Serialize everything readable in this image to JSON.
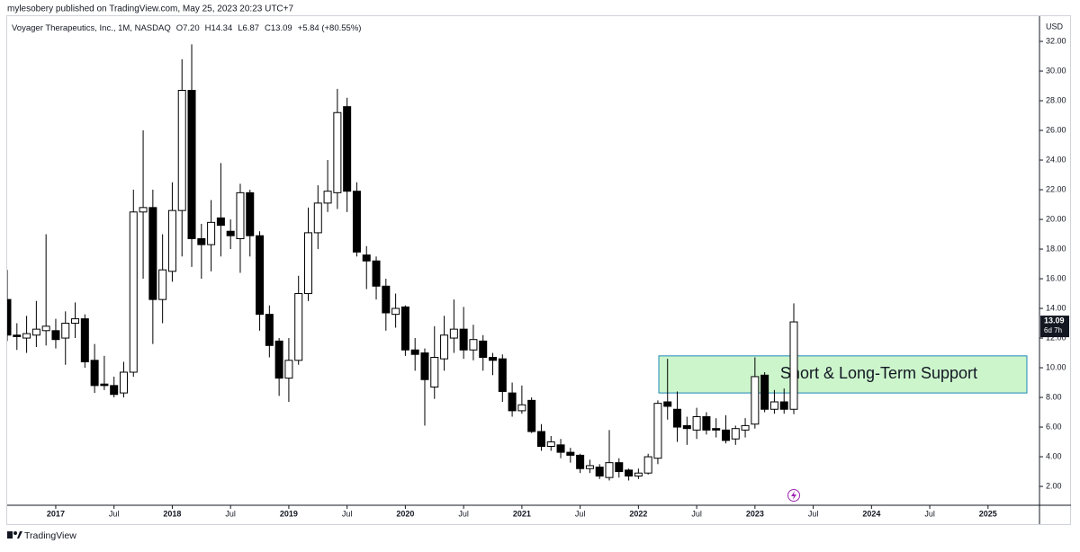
{
  "header": "mylesobery published on TradingView.com, May 25, 2023 20:23 UTC+7",
  "footer": "TradingView",
  "chart_data": {
    "type": "candlestick",
    "legend": {
      "symbol": "Voyager Therapeutics, Inc., 1M, NASDAQ",
      "open": "O7.20",
      "high": "H14.34",
      "low": "L6.87",
      "close": "C13.09",
      "change": "+5.84 (+80.55%)"
    },
    "currency": "USD",
    "up_color": "#ffffff",
    "down_color": "#000000",
    "wick_color": "#000000",
    "x": [
      -5,
      -4,
      -3,
      -2,
      -1,
      0,
      1,
      2,
      3,
      4,
      5,
      6,
      7,
      8,
      9,
      10,
      11,
      12,
      13,
      14,
      15,
      16,
      17,
      18,
      19,
      20,
      21,
      22,
      23,
      24,
      25,
      26,
      27,
      28,
      29,
      30,
      31,
      32,
      33,
      34,
      35,
      36,
      37,
      38,
      39,
      40,
      41,
      42,
      43,
      44,
      45,
      46,
      47,
      48,
      49,
      50,
      51,
      52,
      53,
      54,
      55,
      56,
      57,
      58,
      59,
      60,
      61,
      62,
      63,
      64,
      65,
      66,
      67,
      68,
      69,
      70,
      71,
      72,
      73,
      74,
      75,
      76
    ],
    "open": [
      14.6,
      12.2,
      12.0,
      12.2,
      12.5,
      12.5,
      12.0,
      13.0,
      13.3,
      10.5,
      8.9,
      8.8,
      8.3,
      9.7,
      20.5,
      20.8,
      14.6,
      16.5,
      20.6,
      28.7,
      18.7,
      18.3,
      20.1,
      19.2,
      18.7,
      21.8,
      18.9,
      13.6,
      11.8,
      9.3,
      10.5,
      15.0,
      19.1,
      21.1,
      21.8,
      27.6,
      21.9,
      17.6,
      17.2,
      15.5,
      13.6,
      14.1,
      11.2,
      11.0,
      8.7,
      10.6,
      12.0,
      12.6,
      11.2,
      11.8,
      10.7,
      10.6,
      8.3,
      7.1,
      7.8,
      5.7,
      4.7,
      4.8,
      4.3,
      4.1,
      3.2,
      3.3,
      2.6,
      3.6,
      3.1,
      2.7,
      2.9,
      3.9,
      7.7,
      7.2,
      6.1,
      5.8,
      6.7,
      5.9,
      5.8,
      5.2,
      5.8,
      6.2,
      9.5,
      7.2,
      7.7,
      7.2
    ],
    "high": [
      16.6,
      13.0,
      13.5,
      14.5,
      19.0,
      13.3,
      13.8,
      14.4,
      13.6,
      11.6,
      10.8,
      9.4,
      10.4,
      22.0,
      26.0,
      22.0,
      19.0,
      22.5,
      30.8,
      31.8,
      19.7,
      21.3,
      23.8,
      20.0,
      22.4,
      22.0,
      19.2,
      14.2,
      12.0,
      12.0,
      16.2,
      20.8,
      22.3,
      24.0,
      28.8,
      28.2,
      22.5,
      18.2,
      17.5,
      16.0,
      15.0,
      14.2,
      12.0,
      11.3,
      12.8,
      13.5,
      14.6,
      14.1,
      12.9,
      12.2,
      11.0,
      10.9,
      9.0,
      8.8,
      8.0,
      6.2,
      5.4,
      5.2,
      4.6,
      4.2,
      3.8,
      3.5,
      5.8,
      3.9,
      3.2,
      3.2,
      4.2,
      7.8,
      10.6,
      8.4,
      6.7,
      7.3,
      7.0,
      6.6,
      6.8,
      6.1,
      6.6,
      10.7,
      9.7,
      8.5,
      8.6,
      14.34
    ],
    "low": [
      11.8,
      11.2,
      11.0,
      11.4,
      11.5,
      11.3,
      10.2,
      12.0,
      10.0,
      8.3,
      8.5,
      8.0,
      8.0,
      9.4,
      16.0,
      11.6,
      13.0,
      15.8,
      17.5,
      16.8,
      16.0,
      16.5,
      17.5,
      18.0,
      16.4,
      17.5,
      12.5,
      10.7,
      8.1,
      7.7,
      10.2,
      14.5,
      18.0,
      20.5,
      20.7,
      20.5,
      17.5,
      15.3,
      14.6,
      12.5,
      12.7,
      10.8,
      9.8,
      6.1,
      7.9,
      9.8,
      11.0,
      10.6,
      10.5,
      9.8,
      9.5,
      7.7,
      6.7,
      6.9,
      5.6,
      4.4,
      4.4,
      3.9,
      3.6,
      2.9,
      2.9,
      2.5,
      2.4,
      2.6,
      2.4,
      2.5,
      2.8,
      3.5,
      6.5,
      5.0,
      4.8,
      5.2,
      5.5,
      5.3,
      4.9,
      4.8,
      5.3,
      5.9,
      7.0,
      6.9,
      6.9,
      6.87
    ],
    "close": [
      12.2,
      12.1,
      12.3,
      12.6,
      12.8,
      11.9,
      13.0,
      13.3,
      10.4,
      8.8,
      8.8,
      8.2,
      9.7,
      20.5,
      20.8,
      14.6,
      16.6,
      20.6,
      28.7,
      18.7,
      18.3,
      19.8,
      19.6,
      18.9,
      21.8,
      18.9,
      13.6,
      11.5,
      9.3,
      10.5,
      15.0,
      19.1,
      21.1,
      21.9,
      27.2,
      21.9,
      17.8,
      17.2,
      15.5,
      13.7,
      14.0,
      11.2,
      10.9,
      9.2,
      10.7,
      12.2,
      12.6,
      11.2,
      11.9,
      10.7,
      10.5,
      8.4,
      7.1,
      7.5,
      5.7,
      4.7,
      5.0,
      4.3,
      4.1,
      3.2,
      3.4,
      2.7,
      3.6,
      3.0,
      2.7,
      2.9,
      4.0,
      7.6,
      7.4,
      6.0,
      5.9,
      6.7,
      5.8,
      5.8,
      5.1,
      5.9,
      6.1,
      9.4,
      7.2,
      7.7,
      7.2,
      13.09
    ],
    "xlim": [
      -5,
      101.3
    ],
    "xticks": [
      {
        "value": 0,
        "label": "2017"
      },
      {
        "value": 6,
        "label": "Jul"
      },
      {
        "value": 12,
        "label": "2018"
      },
      {
        "value": 18,
        "label": "Jul"
      },
      {
        "value": 24,
        "label": "2019"
      },
      {
        "value": 30,
        "label": "Jul"
      },
      {
        "value": 36,
        "label": "2020"
      },
      {
        "value": 42,
        "label": "Jul"
      },
      {
        "value": 48,
        "label": "2021"
      },
      {
        "value": 54,
        "label": "Jul"
      },
      {
        "value": 60,
        "label": "2022"
      },
      {
        "value": 66,
        "label": "Jul"
      },
      {
        "value": 72,
        "label": "2023"
      },
      {
        "value": 78,
        "label": "Jul"
      },
      {
        "value": 84,
        "label": "2024"
      },
      {
        "value": 90,
        "label": "Jul"
      },
      {
        "value": 96,
        "label": "2025"
      }
    ],
    "ylim": [
      0.73,
      33.7
    ],
    "yticks": [
      {
        "value": 2,
        "label": "2.00"
      },
      {
        "value": 4,
        "label": "4.00"
      },
      {
        "value": 6,
        "label": "6.00"
      },
      {
        "value": 8,
        "label": "8.00"
      },
      {
        "value": 10,
        "label": "10.00"
      },
      {
        "value": 12,
        "label": "12.00"
      },
      {
        "value": 14,
        "label": "14.00"
      },
      {
        "value": 16,
        "label": "16.00"
      },
      {
        "value": 18,
        "label": "18.00"
      },
      {
        "value": 20,
        "label": "20.00"
      },
      {
        "value": 22,
        "label": "22.00"
      },
      {
        "value": 24,
        "label": "24.00"
      },
      {
        "value": 26,
        "label": "26.00"
      },
      {
        "value": 28,
        "label": "28.00"
      },
      {
        "value": 30,
        "label": "30.00"
      },
      {
        "value": 32,
        "label": "32.00"
      }
    ],
    "price_tag": {
      "value": 13.09,
      "label": "13.09",
      "countdown": "6d 7h"
    },
    "support_zone": {
      "label": "Short & Long-Term Support",
      "x": [
        62.1,
        100
      ],
      "y": [
        8.3,
        10.8
      ],
      "color": "#ccf5cc"
    }
  }
}
